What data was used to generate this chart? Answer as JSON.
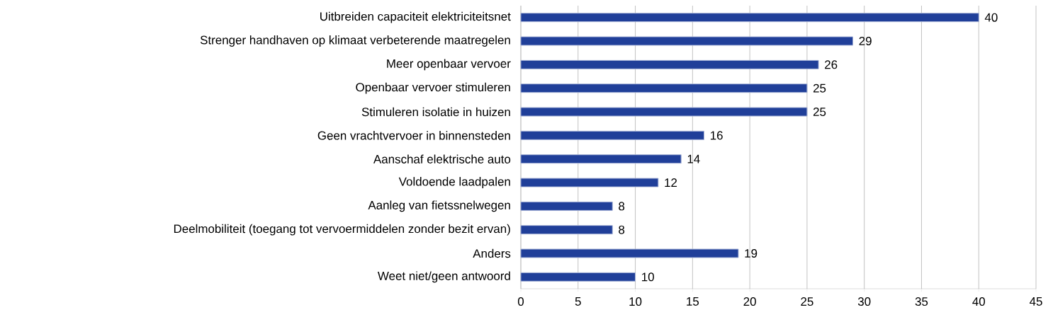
{
  "chart_data": {
    "type": "bar",
    "orientation": "horizontal",
    "categories": [
      "Uitbreiden capaciteit elektriciteitsnet",
      "Strenger handhaven op klimaat verbeterende maatregelen",
      "Meer openbaar vervoer",
      "Openbaar vervoer stimuleren",
      "Stimuleren isolatie in huizen",
      "Geen vrachtvervoer in binnensteden",
      "Aanschaf elektrische auto",
      "Voldoende laadpalen",
      "Aanleg van fietssnelwegen",
      "Deelmobiliteit (toegang tot vervoermiddelen zonder bezit ervan)",
      "Anders",
      "Weet niet/geen antwoord"
    ],
    "values": [
      40,
      29,
      26,
      25,
      25,
      16,
      14,
      12,
      8,
      8,
      19,
      10
    ],
    "color": "#203f99",
    "xlim": [
      0,
      45
    ],
    "xticks": [
      0,
      5,
      10,
      15,
      20,
      25,
      30,
      35,
      40,
      45
    ],
    "grid": "x",
    "data_labels": true
  }
}
